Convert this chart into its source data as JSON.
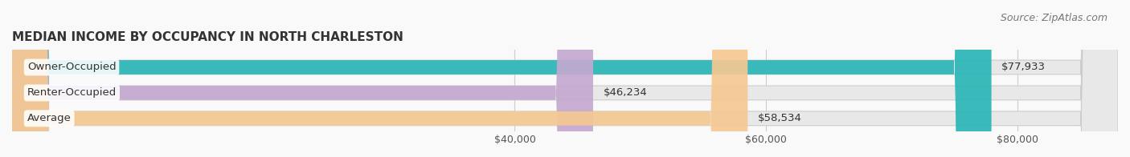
{
  "title": "MEDIAN INCOME BY OCCUPANCY IN NORTH CHARLESTON",
  "source": "Source: ZipAtlas.com",
  "categories": [
    "Owner-Occupied",
    "Renter-Occupied",
    "Average"
  ],
  "values": [
    77933,
    46234,
    58534
  ],
  "bar_colors": [
    "#2ab5b5",
    "#c4a8d0",
    "#f5c992"
  ],
  "bar_bg_color": "#eeeeee",
  "label_values": [
    "$77,933",
    "$46,234",
    "$58,534"
  ],
  "xlim": [
    0,
    88000
  ],
  "xticks": [
    40000,
    60000,
    80000
  ],
  "xticklabels": [
    "$40,000",
    "$60,000",
    "$80,000"
  ],
  "title_fontsize": 11,
  "source_fontsize": 9,
  "bar_height": 0.55,
  "bar_label_fontsize": 9.5,
  "category_fontsize": 9.5,
  "background_color": "#f9f9f9",
  "bar_bg_alpha": 0.4
}
